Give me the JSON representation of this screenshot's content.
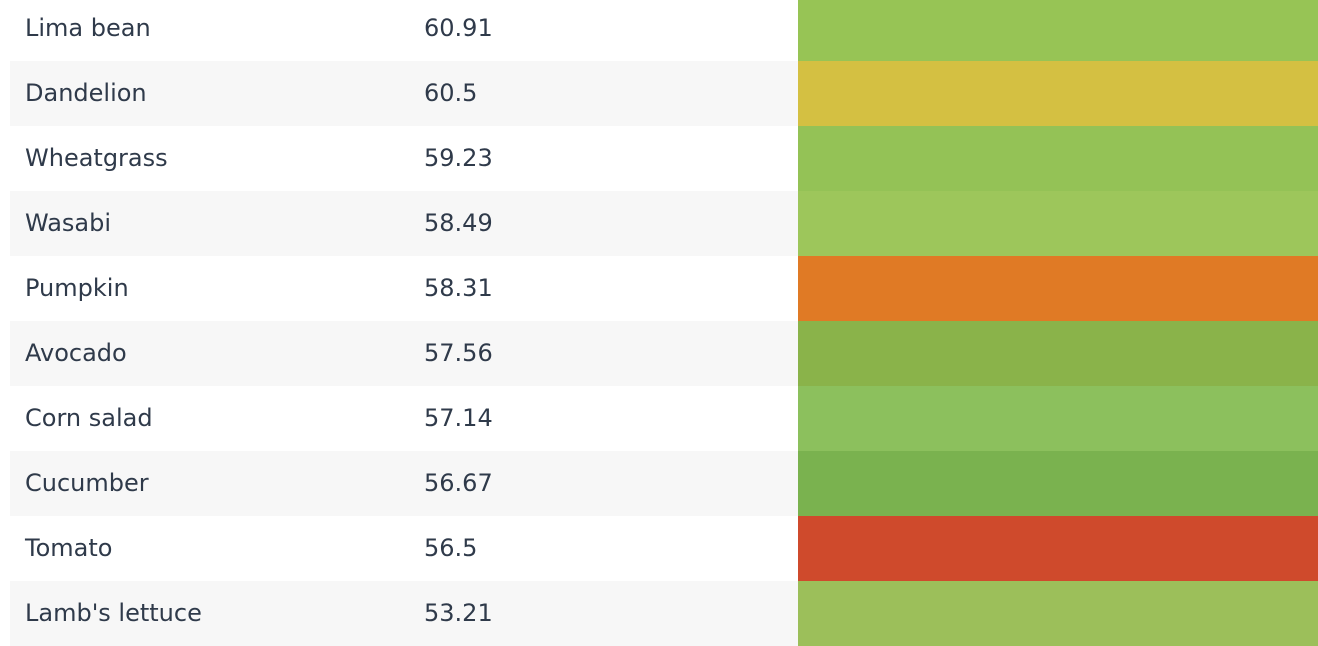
{
  "rows": [
    {
      "name": "Lima bean",
      "value": "60.91",
      "color": "#97c455"
    },
    {
      "name": "Dandelion",
      "value": "60.5",
      "color": "#d4c042"
    },
    {
      "name": "Wheatgrass",
      "value": "59.23",
      "color": "#94c256"
    },
    {
      "name": "Wasabi",
      "value": "58.49",
      "color": "#9dc65b"
    },
    {
      "name": "Pumpkin",
      "value": "58.31",
      "color": "#e07a25"
    },
    {
      "name": "Avocado",
      "value": "57.56",
      "color": "#8ab34a"
    },
    {
      "name": "Corn salad",
      "value": "57.14",
      "color": "#8cc05d"
    },
    {
      "name": "Cucumber",
      "value": "56.67",
      "color": "#7ab24f"
    },
    {
      "name": "Tomato",
      "value": "56.5",
      "color": "#cf4a2c"
    },
    {
      "name": "Lamb's lettuce",
      "value": "53.21",
      "color": "#9cbf5a"
    }
  ]
}
